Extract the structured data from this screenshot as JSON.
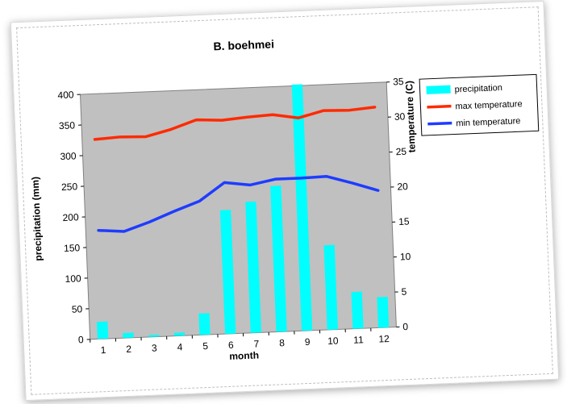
{
  "chart_data": {
    "type": "bar",
    "title": "B. boehmei",
    "xlabel": "month",
    "ylabel": "precipitation (mm)",
    "y2label": "temperature (C)",
    "ylim": [
      0,
      400
    ],
    "yticks": [
      0,
      50,
      100,
      150,
      200,
      250,
      300,
      350,
      400
    ],
    "y2lim": [
      0,
      35
    ],
    "y2ticks": [
      0,
      5,
      10,
      15,
      20,
      25,
      30,
      35
    ],
    "categories": [
      "1",
      "2",
      "3",
      "4",
      "5",
      "6",
      "7",
      "8",
      "9",
      "10",
      "11",
      "12"
    ],
    "series": [
      {
        "name": "precipitation",
        "type": "bar",
        "axis": "left",
        "color": "#00ffff",
        "values": [
          28,
          8,
          3,
          5,
          35,
          202,
          214,
          238,
          402,
          138,
          60,
          50
        ]
      },
      {
        "name": "max temperature",
        "type": "line",
        "axis": "right",
        "color": "#ff2a00",
        "values": [
          28.5,
          28.7,
          28.6,
          29.5,
          30.7,
          30.5,
          30.8,
          31.0,
          30.4,
          31.3,
          31.2,
          31.5
        ]
      },
      {
        "name": "min temperature",
        "type": "line",
        "axis": "right",
        "color": "#1e3cff",
        "values": [
          15.5,
          15.2,
          16.4,
          17.8,
          19.1,
          21.6,
          21.1,
          21.8,
          21.8,
          21.9,
          20.8,
          19.6
        ]
      }
    ],
    "grid": false,
    "plot_background": "#c0c0c0",
    "legend": "right"
  }
}
